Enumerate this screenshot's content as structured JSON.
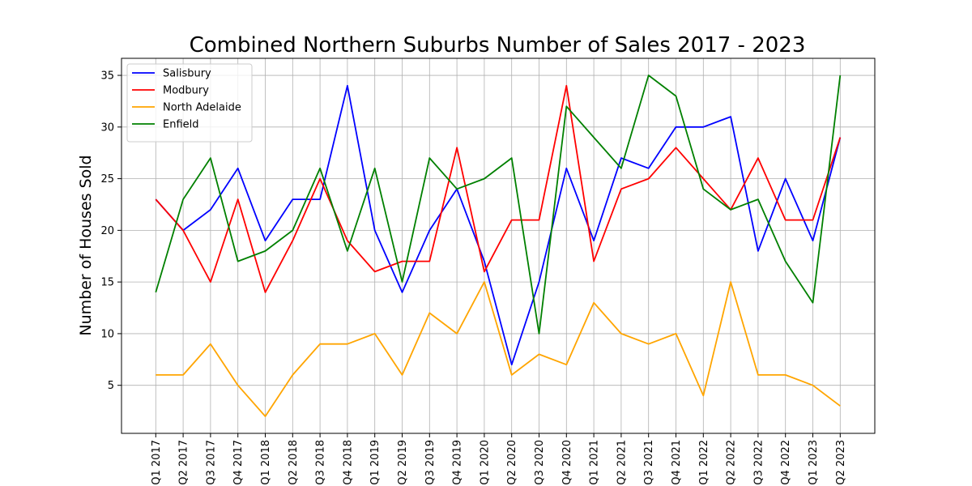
{
  "chart_data": {
    "type": "line",
    "title": "Combined Northern Suburbs Number of Sales 2017 - 2023",
    "xlabel": "",
    "ylabel": "Number of Houses Sold",
    "categories": [
      "Q1 2017",
      "Q2 2017",
      "Q3 2017",
      "Q4 2017",
      "Q1 2018",
      "Q2 2018",
      "Q3 2018",
      "Q4 2018",
      "Q1 2019",
      "Q2 2019",
      "Q3 2019",
      "Q4 2019",
      "Q1 2020",
      "Q2 2020",
      "Q3 2020",
      "Q4 2020",
      "Q1 2021",
      "Q2 2021",
      "Q3 2021",
      "Q4 2021",
      "Q1 2022",
      "Q2 2022",
      "Q3 2022",
      "Q4 2022",
      "Q1 2023",
      "Q2 2023"
    ],
    "yticks": [
      5,
      10,
      15,
      20,
      25,
      30,
      35
    ],
    "ylim": [
      0.35,
      36.65
    ],
    "grid": true,
    "legend_position": "top-left",
    "series": [
      {
        "name": "Salisbury",
        "color": "#0000ff",
        "values": [
          23,
          20,
          22,
          26,
          19,
          23,
          23,
          34,
          20,
          14,
          20,
          24,
          17,
          7,
          15,
          26,
          19,
          27,
          26,
          30,
          30,
          31,
          18,
          25,
          19,
          29
        ]
      },
      {
        "name": "Modbury",
        "color": "#ff0000",
        "values": [
          23,
          20,
          15,
          23,
          14,
          19,
          25,
          19,
          16,
          17,
          17,
          28,
          16,
          21,
          21,
          34,
          17,
          24,
          25,
          28,
          25,
          22,
          27,
          21,
          21,
          29
        ]
      },
      {
        "name": "North Adelaide",
        "color": "#ffa500",
        "values": [
          6,
          6,
          9,
          5,
          2,
          6,
          9,
          9,
          10,
          6,
          12,
          10,
          15,
          6,
          8,
          7,
          13,
          10,
          9,
          10,
          4,
          15,
          6,
          6,
          5,
          3
        ]
      },
      {
        "name": "Enfield",
        "color": "#008000",
        "values": [
          14,
          23,
          27,
          17,
          18,
          20,
          26,
          18,
          26,
          15,
          27,
          24,
          25,
          27,
          10,
          32,
          29,
          26,
          35,
          33,
          24,
          22,
          23,
          17,
          13,
          35
        ]
      }
    ]
  }
}
